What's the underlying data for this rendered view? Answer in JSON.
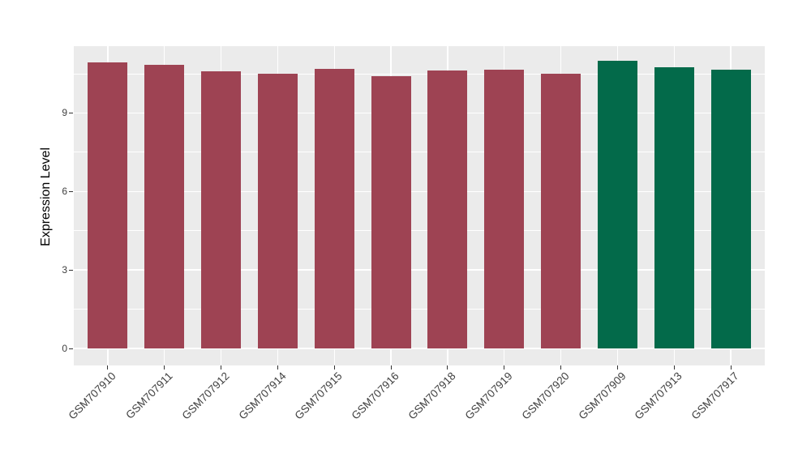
{
  "chart_data": {
    "type": "bar",
    "title": "",
    "xlabel": "",
    "ylabel": "Expression Level",
    "categories": [
      "GSM707910",
      "GSM707911",
      "GSM707912",
      "GSM707914",
      "GSM707915",
      "GSM707916",
      "GSM707918",
      "GSM707919",
      "GSM707920",
      "GSM707909",
      "GSM707913",
      "GSM707917"
    ],
    "values": [
      10.92,
      10.85,
      10.58,
      10.5,
      10.68,
      10.4,
      10.62,
      10.66,
      10.49,
      11.0,
      10.74,
      10.66
    ],
    "bar_colors": [
      "#9E4353",
      "#9E4353",
      "#9E4353",
      "#9E4353",
      "#9E4353",
      "#9E4353",
      "#9E4353",
      "#9E4353",
      "#9E4353",
      "#036A4A",
      "#036A4A",
      "#036A4A"
    ],
    "yticks": [
      0,
      3,
      6,
      9
    ],
    "yticks_minor": [
      1.5,
      4.5,
      7.5,
      10.5
    ],
    "ylim": [
      0,
      11.55
    ],
    "grid": true,
    "legend_position": "none",
    "panel_background": "#EBEBEB",
    "grid_color": "#FFFFFF",
    "axis_text_color": "#404040",
    "axis_title_color": "#000000",
    "tick_color": "#333333",
    "bar_width_fraction": 0.7
  }
}
